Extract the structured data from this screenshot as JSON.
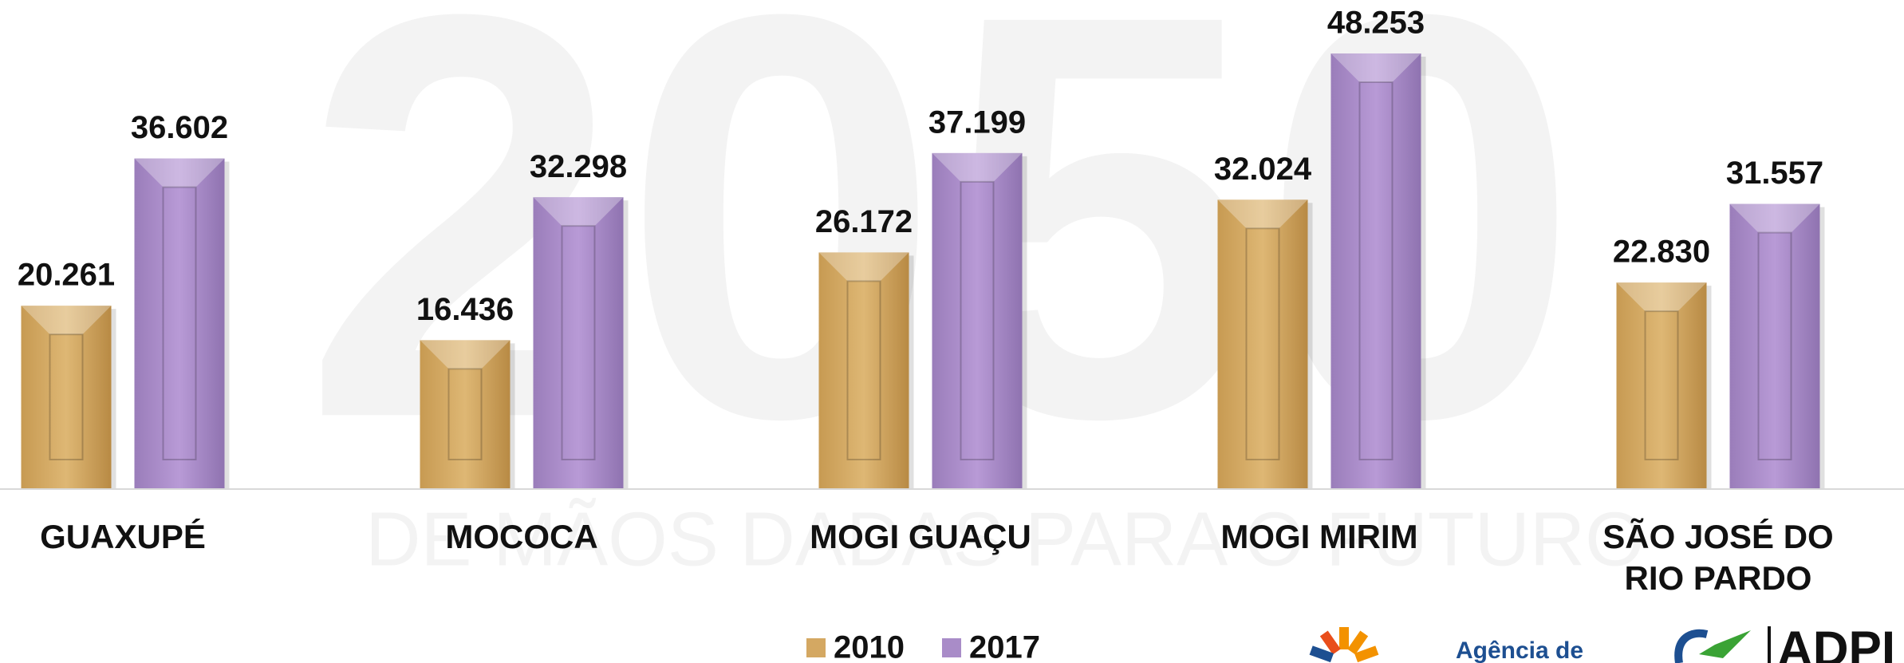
{
  "chart_data": {
    "type": "bar",
    "watermark": "2050",
    "watermark_subtitle": "DE MÃOS DADAS PARA O FUTURO",
    "categories": [
      "GUAXUPÉ",
      "MOCOCA",
      "MOGI GUAÇU",
      "MOGI MIRIM",
      "SÃO JOSÉ DO RIO PARDO"
    ],
    "series": [
      {
        "name": "2010",
        "color": "#d4a862",
        "values": [
          20261,
          16436,
          26172,
          32024,
          22830
        ],
        "value_labels": [
          "20.261",
          "16.436",
          "26.172",
          "32.024",
          "22.830"
        ]
      },
      {
        "name": "2017",
        "color": "#a98cc8",
        "values": [
          36602,
          32298,
          37199,
          48253,
          31557
        ],
        "value_labels": [
          "36.602",
          "32.298",
          "37.199",
          "48.253",
          "31.557"
        ]
      }
    ],
    "legend": "bottom",
    "logo_text": "Agência de",
    "logo_text_2": "ADPI"
  }
}
